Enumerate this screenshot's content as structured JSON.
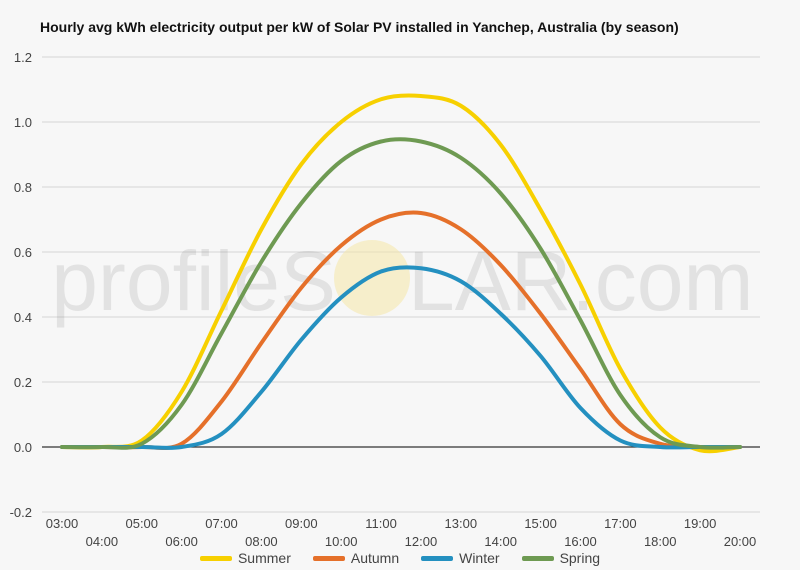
{
  "chart_data": {
    "type": "line",
    "title": "Hourly avg kWh electricity output per kW of Solar PV installed in Yanchep, Australia (by season)",
    "xlabel": "",
    "ylabel": "",
    "ylim": [
      -0.2,
      1.2
    ],
    "yticks": [
      "-0.2",
      "0.0",
      "0.2",
      "0.4",
      "0.6",
      "0.8",
      "1.0",
      "1.2"
    ],
    "categories": [
      "03:00",
      "04:00",
      "05:00",
      "06:00",
      "07:00",
      "08:00",
      "09:00",
      "10:00",
      "11:00",
      "12:00",
      "13:00",
      "14:00",
      "15:00",
      "16:00",
      "17:00",
      "18:00",
      "19:00",
      "20:00"
    ],
    "grid": true,
    "legend_position": "bottom",
    "series": [
      {
        "name": "Summer",
        "color": "#f7d000",
        "values": [
          0,
          0,
          0.02,
          0.17,
          0.42,
          0.67,
          0.87,
          1.0,
          1.07,
          1.08,
          1.05,
          0.93,
          0.73,
          0.5,
          0.24,
          0.06,
          -0.01,
          0
        ]
      },
      {
        "name": "Autumn",
        "color": "#e5702a",
        "values": [
          0,
          0,
          0,
          0.01,
          0.14,
          0.32,
          0.49,
          0.62,
          0.7,
          0.72,
          0.67,
          0.56,
          0.41,
          0.24,
          0.07,
          0.01,
          0,
          0
        ]
      },
      {
        "name": "Winter",
        "color": "#2490c0",
        "values": [
          0,
          0,
          0,
          0,
          0.04,
          0.17,
          0.33,
          0.46,
          0.54,
          0.55,
          0.51,
          0.41,
          0.28,
          0.12,
          0.02,
          0,
          0,
          0
        ]
      },
      {
        "name": "Spring",
        "color": "#6e9a52",
        "values": [
          0,
          0,
          0.01,
          0.13,
          0.35,
          0.57,
          0.75,
          0.88,
          0.94,
          0.94,
          0.89,
          0.78,
          0.61,
          0.39,
          0.16,
          0.03,
          0,
          0
        ]
      }
    ]
  },
  "watermark": {
    "left": "profileS",
    "right": "LAR.com"
  }
}
